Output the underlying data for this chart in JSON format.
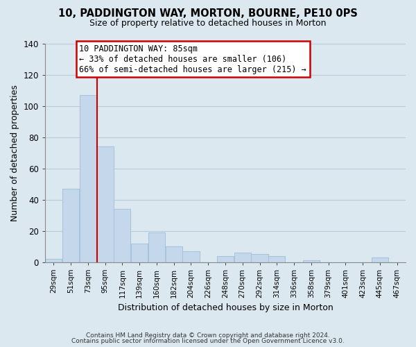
{
  "title": "10, PADDINGTON WAY, MORTON, BOURNE, PE10 0PS",
  "subtitle": "Size of property relative to detached houses in Morton",
  "xlabel": "Distribution of detached houses by size in Morton",
  "ylabel": "Number of detached properties",
  "bar_color": "#c5d8eb",
  "bar_edge_color": "#a8c4dc",
  "vline_x_bin": 3,
  "vline_color": "#cc0000",
  "categories": [
    "29sqm",
    "51sqm",
    "73sqm",
    "95sqm",
    "117sqm",
    "139sqm",
    "160sqm",
    "182sqm",
    "204sqm",
    "226sqm",
    "248sqm",
    "270sqm",
    "292sqm",
    "314sqm",
    "336sqm",
    "358sqm",
    "379sqm",
    "401sqm",
    "423sqm",
    "445sqm",
    "467sqm"
  ],
  "values": [
    2,
    47,
    107,
    74,
    34,
    12,
    19,
    10,
    7,
    0,
    4,
    6,
    5,
    4,
    0,
    1,
    0,
    0,
    0,
    3,
    0
  ],
  "ylim": [
    0,
    140
  ],
  "yticks": [
    0,
    20,
    40,
    60,
    80,
    100,
    120,
    140
  ],
  "annotation_title": "10 PADDINGTON WAY: 85sqm",
  "annotation_line1": "← 33% of detached houses are smaller (106)",
  "annotation_line2": "66% of semi-detached houses are larger (215) →",
  "annotation_box_color": "#ffffff",
  "annotation_border_color": "#cc0000",
  "footer_line1": "Contains HM Land Registry data © Crown copyright and database right 2024.",
  "footer_line2": "Contains public sector information licensed under the Open Government Licence v3.0.",
  "background_color": "#dce8f0",
  "plot_background_color": "#dce8f0",
  "grid_color": "#b8ccd8",
  "vline_position": 85
}
